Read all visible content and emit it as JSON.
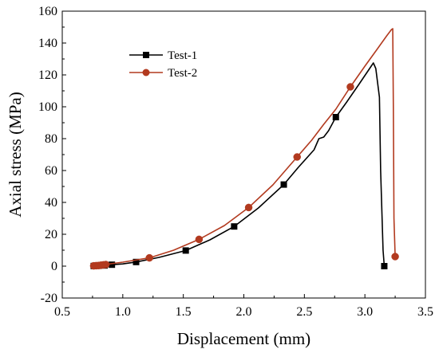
{
  "chart_data": {
    "type": "line",
    "title": "",
    "xlabel": "Displacement (mm)",
    "ylabel": "Axial stress (MPa)",
    "xlim": [
      0.5,
      3.5
    ],
    "ylim": [
      -20,
      160
    ],
    "x_ticks": [
      "0.5",
      "1.0",
      "1.5",
      "2.0",
      "2.5",
      "3.0",
      "3.5"
    ],
    "y_ticks": [
      "-20",
      "0",
      "20",
      "40",
      "60",
      "80",
      "100",
      "120",
      "140",
      "160"
    ],
    "grid": false,
    "legend_position": "top-left",
    "series": [
      {
        "name": "Test-1",
        "color": "#000000",
        "marker": "square",
        "x": [
          0.76,
          0.8,
          0.85,
          0.91,
          1.0,
          1.11,
          1.3,
          1.52,
          1.72,
          1.92,
          2.12,
          2.33,
          2.45,
          2.58,
          2.62,
          2.66,
          2.7,
          2.76,
          2.85,
          2.95,
          3.03,
          3.07,
          3.09,
          3.12,
          3.13,
          3.15,
          3.16
        ],
        "y": [
          0.1,
          0.2,
          0.4,
          0.9,
          1.4,
          2.6,
          5.5,
          9.8,
          16.5,
          24.9,
          36.5,
          51.2,
          62.0,
          73.0,
          80.0,
          81.0,
          85.0,
          93.5,
          103.0,
          114.0,
          123.0,
          127.5,
          124.0,
          106.0,
          60.0,
          10.0,
          0.0
        ],
        "marker_points": [
          {
            "x": 0.76,
            "y": 0.1
          },
          {
            "x": 0.8,
            "y": 0.2
          },
          {
            "x": 0.85,
            "y": 0.4
          },
          {
            "x": 0.91,
            "y": 0.9
          },
          {
            "x": 1.11,
            "y": 2.6
          },
          {
            "x": 1.52,
            "y": 9.8
          },
          {
            "x": 1.92,
            "y": 24.9
          },
          {
            "x": 2.33,
            "y": 51.2
          },
          {
            "x": 2.76,
            "y": 93.5
          },
          {
            "x": 3.16,
            "y": 0.0
          }
        ]
      },
      {
        "name": "Test-2",
        "color": "#B23A1F",
        "marker": "circle",
        "x": [
          0.76,
          0.8,
          0.84,
          0.9,
          1.0,
          1.22,
          1.42,
          1.63,
          1.84,
          2.04,
          2.24,
          2.44,
          2.56,
          2.66,
          2.76,
          2.88,
          3.0,
          3.1,
          3.18,
          3.22,
          3.23,
          3.235,
          3.24,
          3.25
        ],
        "y": [
          0.2,
          0.4,
          0.8,
          1.5,
          2.5,
          5.2,
          10.0,
          16.8,
          25.5,
          36.8,
          51.0,
          68.5,
          79.0,
          89.0,
          98.5,
          112.5,
          125.5,
          136.0,
          144.5,
          148.5,
          149.0,
          100.0,
          30.0,
          6.0
        ],
        "marker_points": [
          {
            "x": 0.76,
            "y": 0.2
          },
          {
            "x": 0.78,
            "y": 0.3
          },
          {
            "x": 0.8,
            "y": 0.4
          },
          {
            "x": 0.82,
            "y": 0.6
          },
          {
            "x": 0.84,
            "y": 0.8
          },
          {
            "x": 0.86,
            "y": 1.0
          },
          {
            "x": 1.22,
            "y": 5.2
          },
          {
            "x": 1.63,
            "y": 16.8
          },
          {
            "x": 2.04,
            "y": 36.8
          },
          {
            "x": 2.44,
            "y": 68.5
          },
          {
            "x": 2.88,
            "y": 112.5
          },
          {
            "x": 3.25,
            "y": 6.0
          }
        ]
      }
    ]
  }
}
